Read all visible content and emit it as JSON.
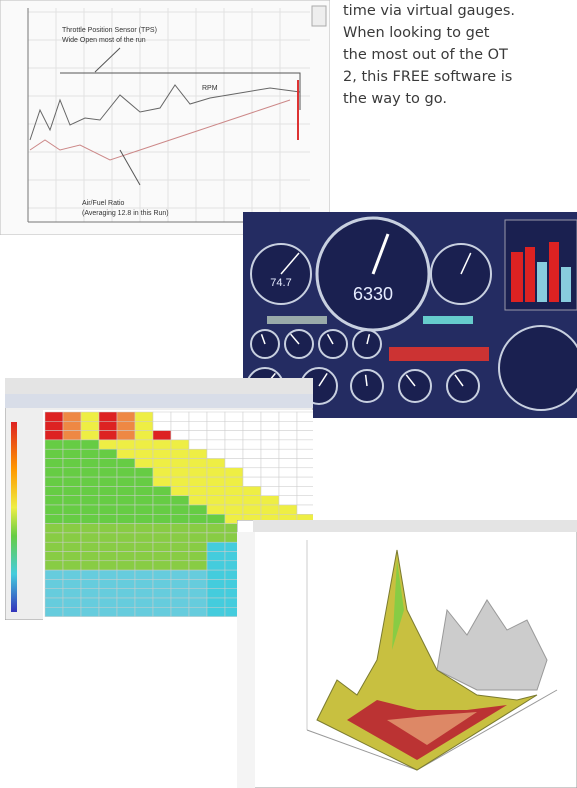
{
  "paragraph": {
    "lines": [
      "time via virtual gauges.",
      "When looking to get",
      "the most out of the OT",
      "2, this FREE software is",
      "the way to go."
    ]
  },
  "log_screenshot": {
    "annotations": [
      "Throttle Position Sensor (TPS)",
      "Wide Open most of the run",
      "RPM",
      "Air/Fuel Ratio",
      "(Averaging 12.8 in this Run)"
    ]
  },
  "gauges": {
    "main_readout": "6330",
    "left_readout": "74.7"
  }
}
